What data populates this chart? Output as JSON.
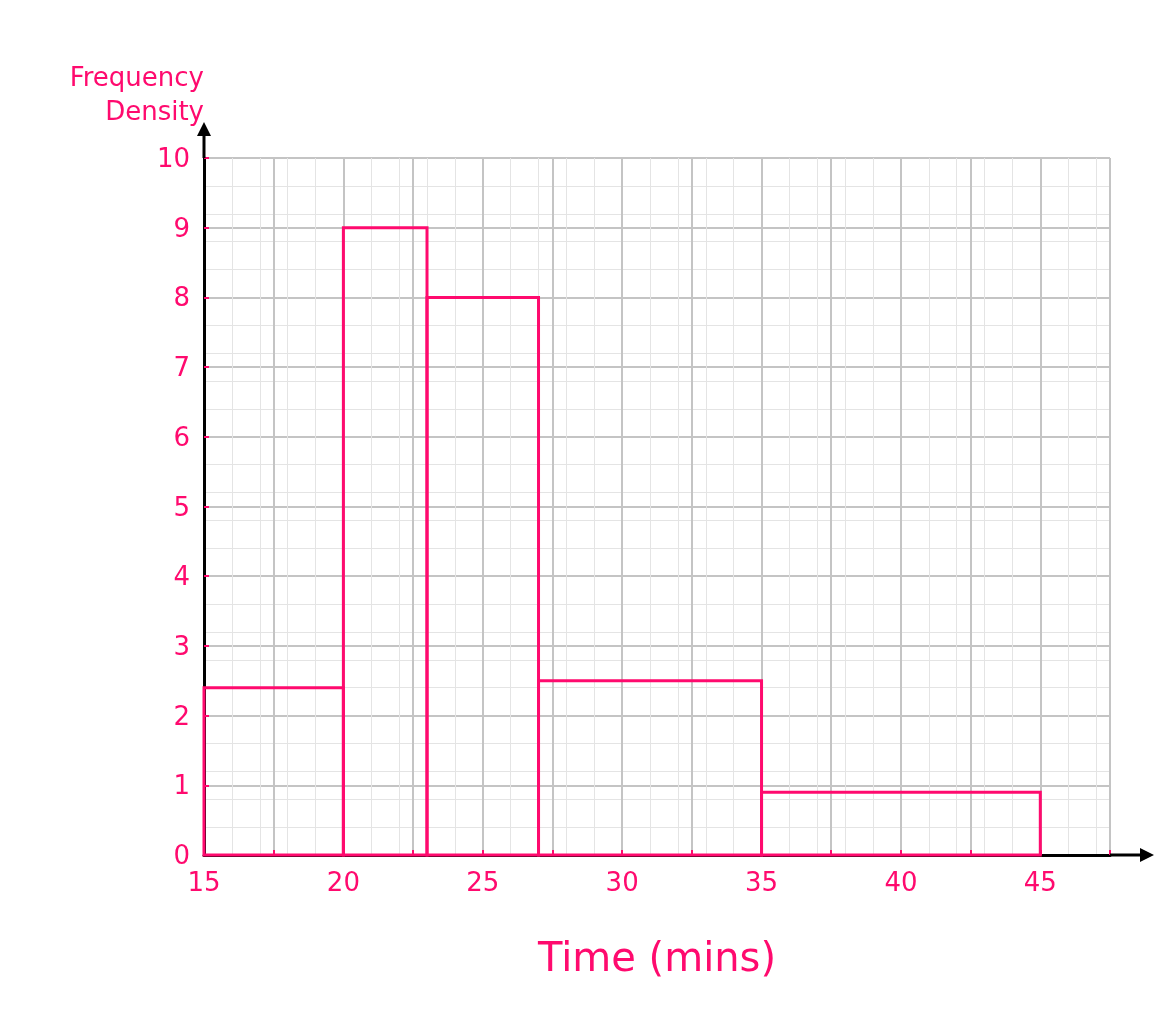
{
  "chart_data": {
    "type": "histogram",
    "xlabel": "Time (mins)",
    "ylabel": "Frequency Density",
    "bins": [
      15,
      20,
      23,
      27,
      35,
      45
    ],
    "values": [
      2.4,
      9,
      8,
      2.5,
      0.9
    ],
    "color": "#ff0a6e",
    "xlim": [
      15,
      47.5
    ],
    "xticks": [
      15,
      {
        "value": 17.5,
        "label": null
      },
      20,
      {
        "value": 22.5,
        "label": null
      },
      25,
      {
        "value": 27.5,
        "label": null
      },
      30,
      {
        "value": 32.5,
        "label": null
      },
      35,
      {
        "value": 37.5,
        "label": null
      },
      40,
      {
        "value": 42.5,
        "label": null
      },
      45,
      {
        "value": 47.5,
        "label": null
      }
    ],
    "ylim": [
      0,
      10
    ],
    "yticks": [
      0,
      1,
      2,
      3,
      4,
      5,
      6,
      7,
      8,
      9,
      10
    ],
    "grid": true
  }
}
